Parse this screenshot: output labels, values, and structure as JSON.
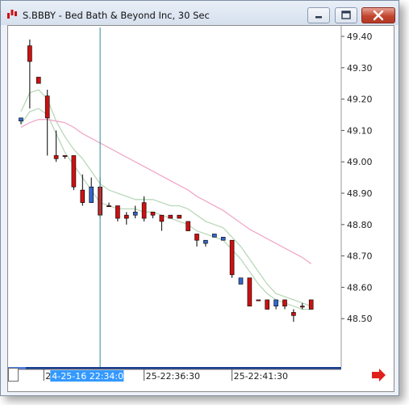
{
  "window": {
    "title": "S.BBBY - Bed Bath & Beyond Inc, 30 Sec"
  },
  "icons": {
    "app": "chart-app-icon",
    "minimize": "minimize-icon",
    "maximize": "maximize-icon",
    "close": "close-icon",
    "scroll": "scroll-right-arrow-icon"
  },
  "colors": {
    "up_candle": "#3366cc",
    "down_candle": "#cc1111",
    "ma_fast": "#b9d8b9",
    "ma_slow": "#f0a8c8",
    "crosshair": "#2a8a96",
    "time_highlight": "#3399ff",
    "scroll_arrow": "#e0201a"
  },
  "chart_data": {
    "type": "candlestick",
    "ylim": [
      48.45,
      49.43
    ],
    "y_ticks": [
      "49.40",
      "49.30",
      "49.20",
      "49.10",
      "49.00",
      "48.90",
      "48.80",
      "48.70",
      "48.60",
      "48.50"
    ],
    "time_labels": [
      {
        "text": "2",
        "slot": 7
      },
      {
        "text": "4-25-16 22:34:00",
        "slot": 7,
        "highlighted": true
      },
      {
        "text": "25-22:36:30",
        "slot": 14
      },
      {
        "text": "25-22:41:30",
        "slot": 24
      }
    ],
    "crosshair_slot": 9,
    "candles": [
      {
        "o": 49.13,
        "h": 49.14,
        "l": 49.12,
        "c": 49.14
      },
      {
        "o": 49.37,
        "h": 49.39,
        "l": 49.17,
        "c": 49.32
      },
      {
        "o": 49.27,
        "h": 49.27,
        "l": 49.25,
        "c": 49.25
      },
      {
        "o": 49.21,
        "h": 49.23,
        "l": 49.02,
        "c": 49.14
      },
      {
        "o": 49.02,
        "h": 49.1,
        "l": 49.0,
        "c": 49.01
      },
      {
        "o": 49.02,
        "h": 49.02,
        "l": 49.01,
        "c": 49.02
      },
      {
        "o": 49.02,
        "h": 49.02,
        "l": 48.91,
        "c": 48.92
      },
      {
        "o": 48.91,
        "h": 48.96,
        "l": 48.86,
        "c": 48.87
      },
      {
        "o": 48.87,
        "h": 48.95,
        "l": 48.87,
        "c": 48.92
      },
      {
        "o": 48.92,
        "h": 48.95,
        "l": 48.82,
        "c": 48.83
      },
      {
        "o": 48.86,
        "h": 48.87,
        "l": 48.86,
        "c": 48.86
      },
      {
        "o": 48.86,
        "h": 48.86,
        "l": 48.81,
        "c": 48.82
      },
      {
        "o": 48.83,
        "h": 48.84,
        "l": 48.8,
        "c": 48.82
      },
      {
        "o": 48.83,
        "h": 48.86,
        "l": 48.82,
        "c": 48.84
      },
      {
        "o": 48.87,
        "h": 48.89,
        "l": 48.81,
        "c": 48.82
      },
      {
        "o": 48.84,
        "h": 48.84,
        "l": 48.82,
        "c": 48.83
      },
      {
        "o": 48.83,
        "h": 48.83,
        "l": 48.78,
        "c": 48.81
      },
      {
        "o": 48.83,
        "h": 48.83,
        "l": 48.82,
        "c": 48.82
      },
      {
        "o": 48.83,
        "h": 48.83,
        "l": 48.82,
        "c": 48.82
      },
      {
        "o": 48.81,
        "h": 48.81,
        "l": 48.78,
        "c": 48.78
      },
      {
        "o": 48.77,
        "h": 48.77,
        "l": 48.73,
        "c": 48.75
      },
      {
        "o": 48.74,
        "h": 48.75,
        "l": 48.73,
        "c": 48.75
      },
      {
        "o": 48.76,
        "h": 48.77,
        "l": 48.76,
        "c": 48.77
      },
      {
        "o": 48.75,
        "h": 48.76,
        "l": 48.75,
        "c": 48.76
      },
      {
        "o": 48.75,
        "h": 48.75,
        "l": 48.63,
        "c": 48.64
      },
      {
        "o": 48.61,
        "h": 48.63,
        "l": 48.61,
        "c": 48.63
      },
      {
        "o": 48.63,
        "h": 48.63,
        "l": 48.54,
        "c": 48.54
      },
      {
        "o": 48.56,
        "h": 48.56,
        "l": 48.56,
        "c": 48.56
      },
      {
        "o": 48.56,
        "h": 48.56,
        "l": 48.53,
        "c": 48.53
      },
      {
        "o": 48.54,
        "h": 48.56,
        "l": 48.53,
        "c": 48.56
      },
      {
        "o": 48.56,
        "h": 48.56,
        "l": 48.53,
        "c": 48.54
      },
      {
        "o": 48.52,
        "h": 48.53,
        "l": 48.49,
        "c": 48.51
      },
      {
        "o": 48.54,
        "h": 48.55,
        "l": 48.53,
        "c": 48.54
      },
      {
        "o": 48.56,
        "h": 48.56,
        "l": 48.53,
        "c": 48.53
      }
    ],
    "series": [
      {
        "type": "line",
        "color": "#b9d8b9",
        "values": [
          49.16,
          49.22,
          49.23,
          49.2,
          49.13,
          49.08,
          49.04,
          49.01,
          48.97,
          48.93,
          48.91,
          48.9,
          48.89,
          48.88,
          48.88,
          48.88,
          48.87,
          48.86,
          48.86,
          48.85,
          48.83,
          48.81,
          48.8,
          48.79,
          48.76,
          48.73,
          48.69,
          48.65,
          48.61,
          48.58,
          48.57,
          48.56,
          48.55,
          48.54
        ]
      },
      {
        "type": "line",
        "color": "#b9d8b9",
        "values": [
          49.12,
          49.16,
          49.17,
          49.15,
          49.09,
          49.03,
          48.99,
          48.95,
          48.91,
          48.87,
          48.86,
          48.85,
          48.85,
          48.85,
          48.84,
          48.84,
          48.83,
          48.82,
          48.81,
          48.8,
          48.78,
          48.77,
          48.76,
          48.75,
          48.72,
          48.69,
          48.65,
          48.61,
          48.58,
          48.56,
          48.55,
          48.54,
          48.53,
          48.53
        ]
      },
      {
        "type": "line",
        "color": "#f0a8c8",
        "values": [
          49.11,
          49.125,
          49.135,
          49.135,
          49.13,
          49.125,
          49.11,
          49.09,
          49.075,
          49.06,
          49.045,
          49.03,
          49.015,
          49.0,
          48.985,
          48.97,
          48.955,
          48.94,
          48.925,
          48.91,
          48.89,
          48.875,
          48.86,
          48.845,
          48.825,
          48.805,
          48.785,
          48.77,
          48.755,
          48.74,
          48.725,
          48.71,
          48.695,
          48.675
        ]
      }
    ]
  }
}
